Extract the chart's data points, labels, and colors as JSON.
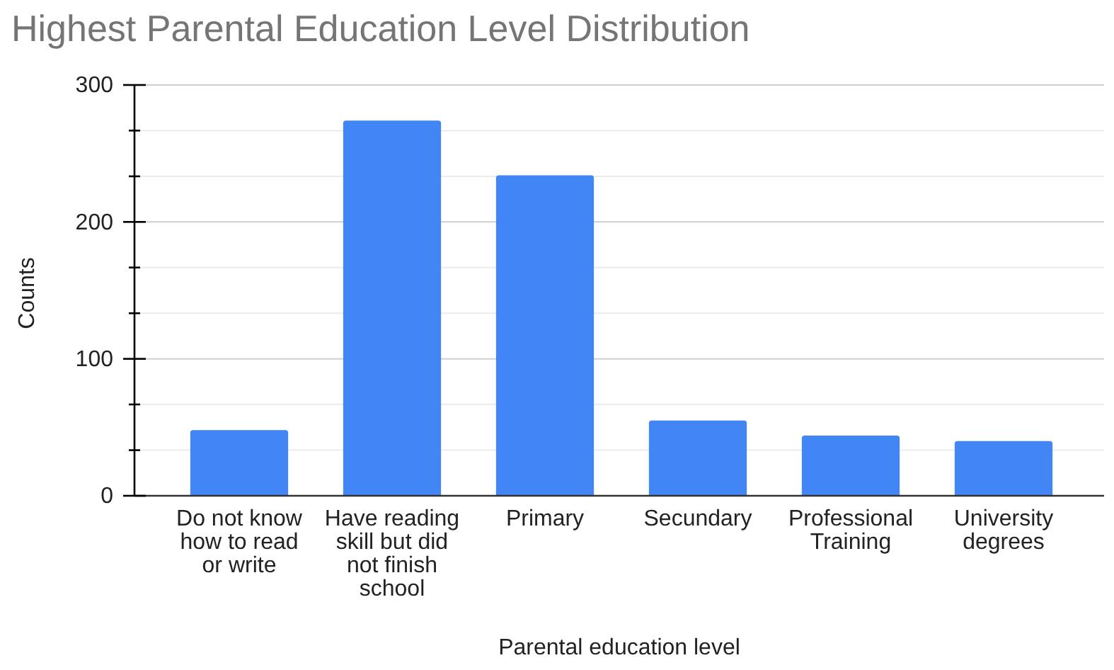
{
  "chart_data": {
    "type": "bar",
    "title": "Highest Parental Education Level Distribution",
    "xlabel": "Parental education level",
    "ylabel": "Counts",
    "categories": [
      "Do not know how to read or write",
      "Have reading skill but did not finish school",
      "Primary",
      "Secundary",
      "Professional Training",
      "University degrees"
    ],
    "values": [
      48,
      274,
      234,
      55,
      44,
      40
    ],
    "color": "#4285f4",
    "ylim": [
      0,
      300
    ],
    "yticks": [
      0,
      {
        "value": 33.3,
        "label": null
      },
      {
        "value": 66.7,
        "label": null
      },
      100,
      {
        "value": 133.3,
        "label": null
      },
      {
        "value": 166.7,
        "label": null
      },
      200,
      {
        "value": 233.3,
        "label": null
      },
      {
        "value": 266.7,
        "label": null
      },
      300
    ],
    "grid": true
  }
}
